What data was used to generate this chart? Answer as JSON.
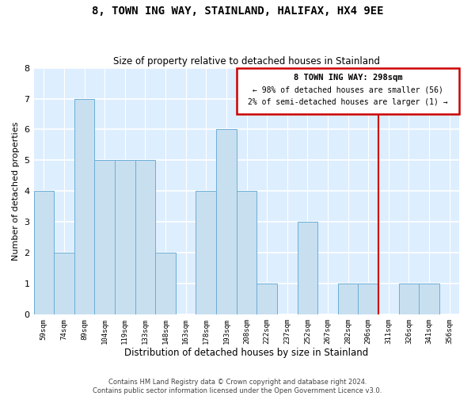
{
  "title": "8, TOWN ING WAY, STAINLAND, HALIFAX, HX4 9EE",
  "subtitle": "Size of property relative to detached houses in Stainland",
  "xlabel": "Distribution of detached houses by size in Stainland",
  "ylabel": "Number of detached properties",
  "bar_labels": [
    "59sqm",
    "74sqm",
    "89sqm",
    "104sqm",
    "119sqm",
    "133sqm",
    "148sqm",
    "163sqm",
    "178sqm",
    "193sqm",
    "208sqm",
    "222sqm",
    "237sqm",
    "252sqm",
    "267sqm",
    "282sqm",
    "296sqm",
    "311sqm",
    "326sqm",
    "341sqm",
    "356sqm"
  ],
  "bar_values": [
    4,
    2,
    7,
    5,
    5,
    5,
    2,
    0,
    4,
    6,
    4,
    1,
    0,
    3,
    0,
    1,
    1,
    0,
    1,
    1,
    0
  ],
  "bar_color": "#c8dff0",
  "bar_edge_color": "#6baed6",
  "ylim": [
    0,
    8
  ],
  "yticks": [
    0,
    1,
    2,
    3,
    4,
    5,
    6,
    7,
    8
  ],
  "vline_color": "#cc0000",
  "annotation_line1": "8 TOWN ING WAY: 298sqm",
  "annotation_line2": "← 98% of detached houses are smaller (56)",
  "annotation_line3": "2% of semi-detached houses are larger (1) →",
  "footer_line1": "Contains HM Land Registry data © Crown copyright and database right 2024.",
  "footer_line2": "Contains public sector information licensed under the Open Government Licence v3.0.",
  "plot_bg_color": "#ddeeff",
  "grid_color": "#ffffff",
  "fig_bg_color": "#ffffff"
}
